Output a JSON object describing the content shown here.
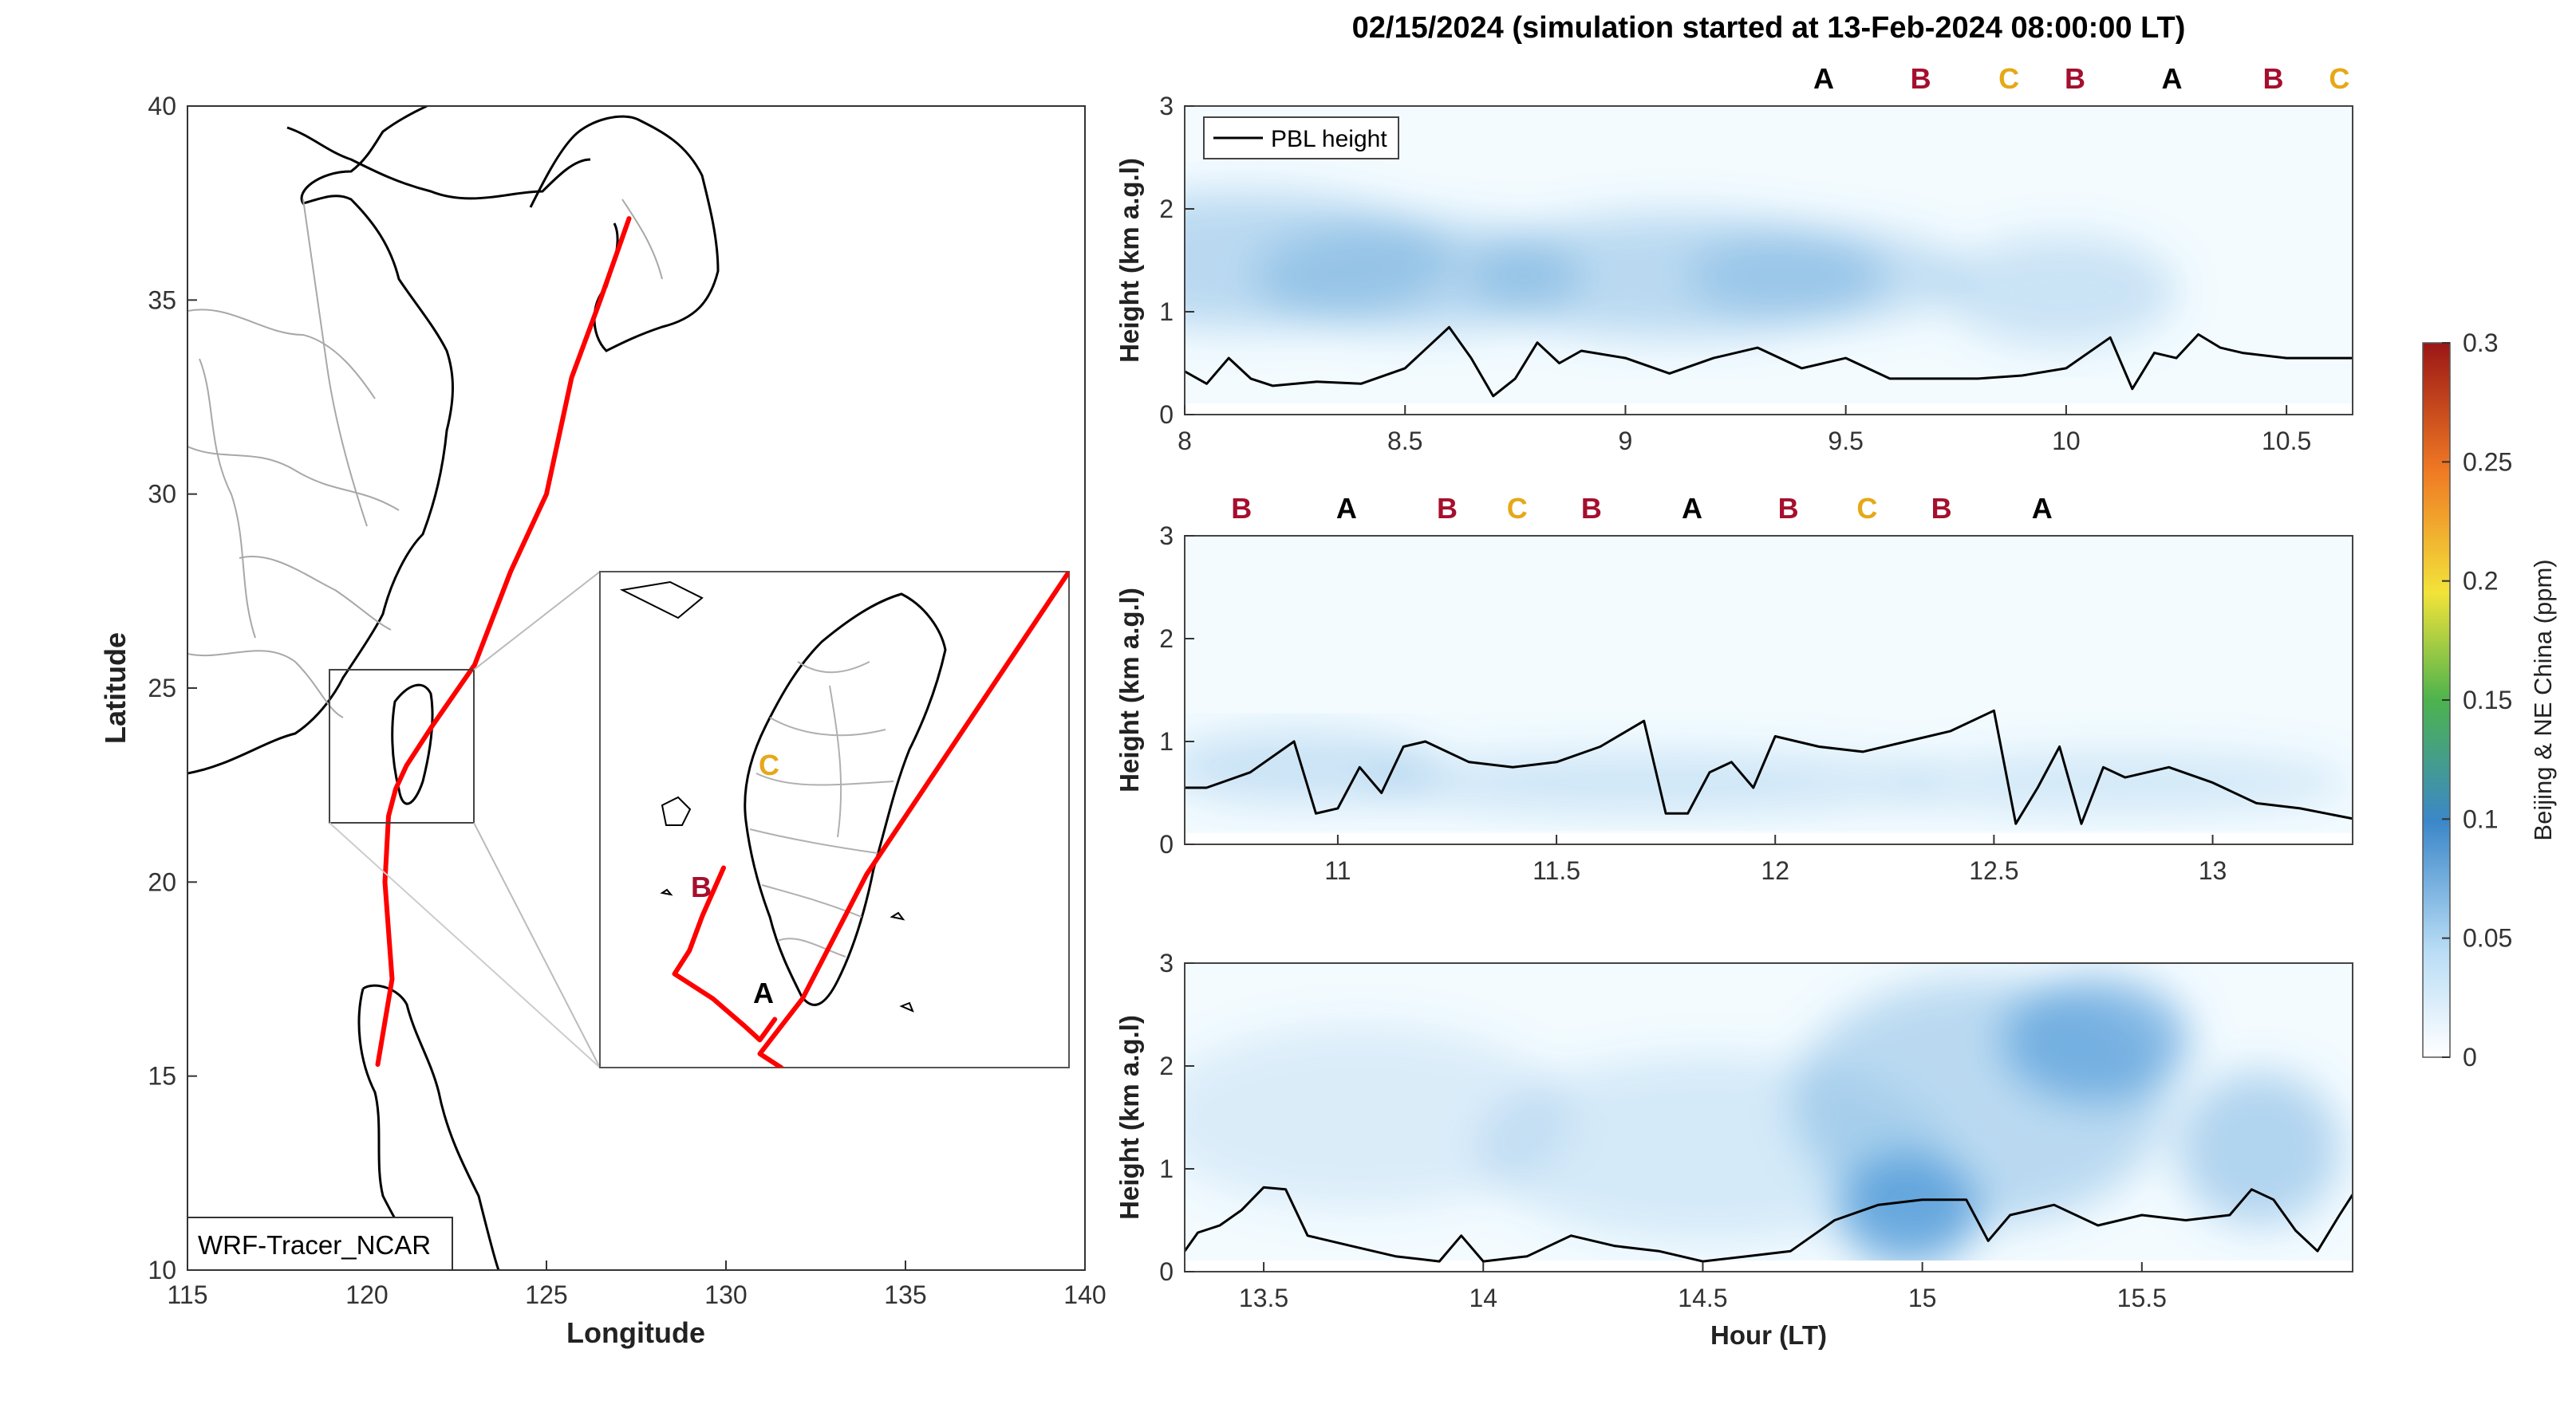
{
  "figure_title": "02/15/2024 (simulation started at 13-Feb-2024 08:00:00 LT)",
  "colors": {
    "track": "#ff0000",
    "marker_A": "#000000",
    "marker_B": "#a50f2d",
    "marker_C": "#e6a817",
    "pbl_line": "#000000",
    "concentration_low": "#f3fbff",
    "concentration_mid": "#4f9ad8"
  },
  "chart_data": [
    {
      "type": "line",
      "panel": "map",
      "xlabel": "Longitude",
      "ylabel": "Latitude",
      "xlim": [
        115,
        140
      ],
      "ylim": [
        10,
        40
      ],
      "xticks": [
        115,
        120,
        125,
        130,
        135,
        140
      ],
      "yticks": [
        10,
        15,
        20,
        25,
        30,
        35,
        40
      ],
      "annotation": "WRF-Tracer_NCAR",
      "legend": "none",
      "series": [
        {
          "x": [
            127.3,
            126.5,
            125.7,
            125.0,
            124.0,
            123.0,
            121.8,
            121.1,
            120.8,
            120.6,
            120.5,
            120.7,
            120.3
          ],
          "y": [
            37.1,
            35.0,
            33.0,
            30.0,
            28.0,
            25.6,
            24.0,
            23.0,
            22.4,
            21.7,
            20.0,
            17.5,
            15.3
          ]
        }
      ],
      "inset": {
        "xlim": [
          119.9,
          122.1
        ],
        "ylim": [
          21.8,
          25.4
        ],
        "labels": [
          "C",
          "B",
          "A"
        ],
        "series": [
          {
            "x": [
              122.1,
              121.15,
              120.85,
              120.7,
              120.65,
              120.75
            ],
            "y": [
              25.4,
              23.2,
              22.3,
              22.0,
              21.9,
              21.8
            ]
          },
          {
            "x": [
              120.48,
              120.38,
              120.32,
              120.25,
              120.43,
              120.58,
              120.65,
              120.72
            ],
            "y": [
              23.25,
              22.9,
              22.65,
              22.48,
              22.3,
              22.1,
              22.0,
              22.15
            ]
          }
        ]
      }
    },
    {
      "type": "heatmap",
      "panel": "time-height-1",
      "ylabel": "Height (km a.g.l)",
      "xlabel": "",
      "xlim": [
        8,
        10.65
      ],
      "ylim": [
        0,
        3
      ],
      "xticks": [
        8,
        8.5,
        9,
        9.5,
        10,
        10.5
      ],
      "yticks": [
        0,
        1,
        2,
        3
      ],
      "legend_label": "PBL height",
      "legend": "top-left",
      "top_labels": [
        {
          "x": 9.45,
          "label": "A"
        },
        {
          "x": 9.67,
          "label": "B"
        },
        {
          "x": 9.87,
          "label": "C"
        },
        {
          "x": 10.02,
          "label": "B"
        },
        {
          "x": 10.24,
          "label": "A"
        },
        {
          "x": 10.47,
          "label": "B"
        },
        {
          "x": 10.62,
          "label": "C"
        }
      ],
      "pbl_series": {
        "name": "PBL height",
        "x": [
          8.0,
          8.05,
          8.1,
          8.15,
          8.2,
          8.3,
          8.4,
          8.5,
          8.6,
          8.65,
          8.7,
          8.75,
          8.8,
          8.85,
          8.9,
          9.0,
          9.1,
          9.2,
          9.3,
          9.4,
          9.5,
          9.6,
          9.7,
          9.8,
          9.9,
          10.0,
          10.1,
          10.15,
          10.2,
          10.25,
          10.3,
          10.35,
          10.4,
          10.5,
          10.65
        ],
        "y": [
          0.42,
          0.3,
          0.55,
          0.35,
          0.28,
          0.32,
          0.3,
          0.45,
          0.85,
          0.55,
          0.18,
          0.35,
          0.7,
          0.5,
          0.62,
          0.55,
          0.4,
          0.55,
          0.65,
          0.45,
          0.55,
          0.35,
          0.35,
          0.35,
          0.38,
          0.45,
          0.75,
          0.25,
          0.6,
          0.55,
          0.78,
          0.65,
          0.6,
          0.55,
          0.55
        ]
      }
    },
    {
      "type": "heatmap",
      "panel": "time-height-2",
      "ylabel": "Height (km a.g.l)",
      "xlabel": "",
      "xlim": [
        10.65,
        13.32
      ],
      "ylim": [
        0,
        3
      ],
      "xticks": [
        11,
        11.5,
        12,
        12.5,
        13
      ],
      "yticks": [
        0,
        1,
        2,
        3
      ],
      "top_labels": [
        {
          "x": 10.78,
          "label": "B"
        },
        {
          "x": 11.02,
          "label": "A"
        },
        {
          "x": 11.25,
          "label": "B"
        },
        {
          "x": 11.41,
          "label": "C"
        },
        {
          "x": 11.58,
          "label": "B"
        },
        {
          "x": 11.81,
          "label": "A"
        },
        {
          "x": 12.03,
          "label": "B"
        },
        {
          "x": 12.21,
          "label": "C"
        },
        {
          "x": 12.38,
          "label": "B"
        },
        {
          "x": 12.61,
          "label": "A"
        }
      ],
      "pbl_series": {
        "name": "PBL height",
        "x": [
          10.65,
          10.7,
          10.8,
          10.9,
          10.95,
          11.0,
          11.05,
          11.1,
          11.15,
          11.2,
          11.3,
          11.4,
          11.5,
          11.6,
          11.7,
          11.75,
          11.8,
          11.85,
          11.9,
          11.95,
          12.0,
          12.1,
          12.2,
          12.3,
          12.4,
          12.5,
          12.55,
          12.6,
          12.65,
          12.7,
          12.75,
          12.8,
          12.9,
          13.0,
          13.1,
          13.2,
          13.32
        ],
        "y": [
          0.55,
          0.55,
          0.7,
          1.0,
          0.3,
          0.35,
          0.75,
          0.5,
          0.95,
          1.0,
          0.8,
          0.75,
          0.8,
          0.95,
          1.2,
          0.3,
          0.3,
          0.7,
          0.8,
          0.55,
          1.05,
          0.95,
          0.9,
          1.0,
          1.1,
          1.3,
          0.2,
          0.55,
          0.95,
          0.2,
          0.75,
          0.65,
          0.75,
          0.6,
          0.4,
          0.35,
          0.25
        ]
      }
    },
    {
      "type": "heatmap",
      "panel": "time-height-3",
      "ylabel": "Height (km a.g.l)",
      "xlabel": "Hour (LT)",
      "xlim": [
        13.32,
        15.98
      ],
      "ylim": [
        0,
        3
      ],
      "xticks": [
        13.5,
        14,
        14.5,
        15,
        15.5
      ],
      "yticks": [
        0,
        1,
        2,
        3
      ],
      "top_labels": [],
      "pbl_series": {
        "name": "PBL height",
        "x": [
          13.32,
          13.35,
          13.4,
          13.45,
          13.5,
          13.55,
          13.6,
          13.65,
          13.7,
          13.8,
          13.9,
          13.95,
          14.0,
          14.1,
          14.2,
          14.3,
          14.4,
          14.5,
          14.6,
          14.7,
          14.8,
          14.9,
          15.0,
          15.1,
          15.15,
          15.2,
          15.3,
          15.4,
          15.5,
          15.6,
          15.7,
          15.75,
          15.8,
          15.85,
          15.9,
          15.95,
          15.98
        ],
        "y": [
          0.2,
          0.38,
          0.45,
          0.6,
          0.82,
          0.8,
          0.35,
          0.3,
          0.25,
          0.15,
          0.1,
          0.35,
          0.1,
          0.15,
          0.35,
          0.25,
          0.2,
          0.1,
          0.15,
          0.2,
          0.5,
          0.65,
          0.7,
          0.7,
          0.3,
          0.55,
          0.65,
          0.45,
          0.55,
          0.5,
          0.55,
          0.8,
          0.7,
          0.4,
          0.2,
          0.55,
          0.75
        ]
      }
    }
  ],
  "colorbar": {
    "label": "Beijing & NE China (ppm)",
    "ticks": [
      0,
      0.05,
      0.1,
      0.15,
      0.2,
      0.25,
      0.3
    ],
    "range": [
      0,
      0.3
    ]
  }
}
